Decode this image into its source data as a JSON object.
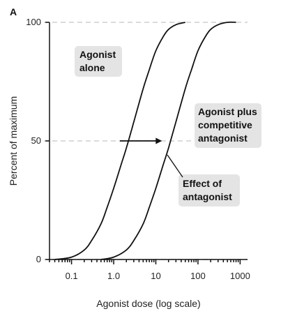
{
  "panel_letter": "A",
  "chart_data": {
    "type": "line",
    "title": "",
    "xlabel": "Agonist dose (log scale)",
    "ylabel": "Percent of maximum",
    "x_scale": "log",
    "xlim": [
      0.03,
      1500
    ],
    "ylim": [
      0,
      100
    ],
    "x_ticks": [
      0.1,
      1.0,
      10,
      100,
      1000
    ],
    "x_tick_labels": [
      "0.1",
      "1.0",
      "10",
      "100",
      "1000"
    ],
    "y_ticks": [
      0,
      50,
      100
    ],
    "y_tick_labels": [
      "0",
      "50",
      "100"
    ],
    "grid": "horizontal dashed at y ticks",
    "series": [
      {
        "x": [
          0.04,
          0.1,
          0.2,
          0.3,
          0.5,
          0.7,
          1.0,
          1.5,
          2.0,
          3.0,
          5.0,
          7.0,
          10,
          15,
          20,
          30,
          50
        ],
        "y": [
          0,
          1,
          4,
          8,
          15,
          22,
          30,
          40,
          47,
          58,
          72,
          80,
          88,
          94,
          97,
          99,
          100
        ]
      },
      {
        "x": [
          0.5,
          1.0,
          2.0,
          3.0,
          5.0,
          7.0,
          10,
          15,
          20,
          30,
          50,
          70,
          100,
          150,
          200,
          300,
          500,
          800
        ],
        "y": [
          0,
          1,
          4,
          8,
          15,
          22,
          30,
          40,
          47,
          58,
          72,
          80,
          88,
          94,
          97,
          99,
          100,
          100
        ]
      }
    ],
    "annotations": [
      {
        "text": [
          "Agonist",
          "alone"
        ],
        "points_to": "series 1"
      },
      {
        "text": [
          "Agonist plus",
          "competitive",
          "antagonist"
        ],
        "points_to": "series 2"
      },
      {
        "text": [
          "Effect of",
          "antagonist"
        ],
        "arrow": {
          "from_x": 1.4,
          "to_x": 14,
          "y": 50
        }
      }
    ]
  }
}
